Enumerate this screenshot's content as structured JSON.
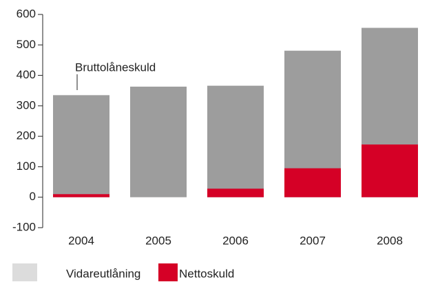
{
  "chart_data": {
    "type": "bar",
    "barmode": "overlay",
    "annotation": "Bruttolåneskuld",
    "categories": [
      "2004",
      "2005",
      "2006",
      "2007",
      "2008"
    ],
    "series": [
      {
        "name": "Vidareutlåning",
        "color": "#9d9d9d",
        "legend_color": "#dcdcdc",
        "values": [
          335,
          363,
          366,
          481,
          556
        ]
      },
      {
        "name": "Nettoskuld",
        "color": "#d50026",
        "values": [
          10,
          0,
          28,
          95,
          173
        ]
      }
    ],
    "ylim": [
      -100,
      600
    ],
    "yticks": [
      -100,
      0,
      100,
      200,
      300,
      400,
      500,
      600
    ],
    "grid": false
  }
}
